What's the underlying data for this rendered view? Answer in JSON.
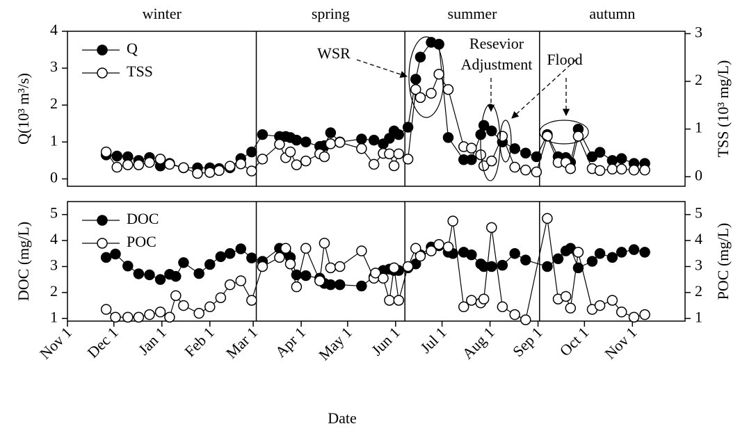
{
  "chart_data": [
    {
      "type": "line",
      "seasons": [
        "winter",
        "spring",
        "summer",
        "autumn"
      ],
      "dividers": [
        122,
        218,
        305
      ],
      "ylabel": "Q(10³ m³/s)",
      "y2label": "TSS (10³ mg/L)",
      "annotations": [
        "WSR",
        "Resevior",
        "Adjustment",
        "Flood"
      ],
      "xlim": [
        0,
        399
      ],
      "ylim": [
        -0.2,
        4
      ],
      "yticks": [
        0,
        1,
        2,
        3,
        4
      ],
      "y2lim": [
        -0.2,
        3.05
      ],
      "y2ticks": [
        0,
        1,
        2,
        3
      ],
      "legend": "upper left",
      "x": [
        25,
        32,
        39,
        46,
        53,
        60,
        66,
        75,
        84,
        92,
        98,
        105,
        112,
        119,
        126,
        137,
        141,
        144,
        148,
        154,
        163,
        166,
        170,
        176,
        190,
        198,
        204,
        208,
        211,
        214,
        220,
        225,
        228,
        235,
        240,
        246,
        256,
        261,
        267,
        269,
        274,
        281,
        289,
        296,
        303,
        310,
        317,
        322,
        325,
        330,
        339,
        344,
        352,
        358,
        366,
        373
      ],
      "series": [
        {
          "name": "Q",
          "color": "#000000",
          "marker": "filled",
          "values": [
            0.65,
            0.62,
            0.6,
            0.5,
            0.58,
            0.35,
            0.42,
            0.3,
            0.3,
            0.3,
            0.28,
            0.3,
            0.55,
            0.73,
            1.2,
            1.15,
            1.15,
            1.12,
            1.05,
            1.0,
            0.88,
            0.9,
            1.25,
            1.0,
            1.08,
            1.05,
            0.95,
            1.1,
            1.3,
            1.2,
            1.4,
            2.7,
            3.3,
            3.7,
            3.65,
            1.12,
            0.52,
            0.52,
            1.2,
            1.45,
            1.3,
            1.0,
            0.82,
            0.7,
            0.6,
            1.2,
            0.6,
            0.58,
            0.45,
            1.35,
            0.6,
            0.72,
            0.5,
            0.55,
            0.42,
            0.42
          ]
        },
        {
          "name": "TSS",
          "color": "#000000",
          "marker": "hollow",
          "axis": "y2",
          "values": [
            0.52,
            0.2,
            0.25,
            0.25,
            0.3,
            0.37,
            0.26,
            0.19,
            0.07,
            0.09,
            0.13,
            0.22,
            0.27,
            0.12,
            0.37,
            0.68,
            0.4,
            0.52,
            0.25,
            0.33,
            0.48,
            0.42,
            0.69,
            0.72,
            0.59,
            0.26,
            0.49,
            0.48,
            0.23,
            0.48,
            0.37,
            1.83,
            1.66,
            1.75,
            2.15,
            1.83,
            0.63,
            0.6,
            0.46,
            0.23,
            0.33,
            0.85,
            0.2,
            0.14,
            0.1,
            0.85,
            0.3,
            0.3,
            0.17,
            0.85,
            0.17,
            0.13,
            0.16,
            0.16,
            0.14,
            0.14
          ]
        }
      ]
    },
    {
      "type": "line",
      "xlabel": "Date",
      "ylabel": "DOC (mg/L)",
      "y2label": "POC (mg/L)",
      "xlim": [
        0,
        399
      ],
      "xticks": [
        {
          "value": 0,
          "label": "Nov 1"
        },
        {
          "value": 30,
          "label": "Dec 1"
        },
        {
          "value": 61,
          "label": "Jan 1"
        },
        {
          "value": 92,
          "label": "Feb 1"
        },
        {
          "value": 120,
          "label": "Mar 1"
        },
        {
          "value": 151,
          "label": "Apr 1"
        },
        {
          "value": 181,
          "label": "May 1"
        },
        {
          "value": 212,
          "label": "Jun 1"
        },
        {
          "value": 242,
          "label": "Jul 1"
        },
        {
          "value": 273,
          "label": "Aug 1"
        },
        {
          "value": 304,
          "label": "Sep 1"
        },
        {
          "value": 334,
          "label": "Oct 1"
        },
        {
          "value": 365,
          "label": "Nov 1"
        }
      ],
      "ylim": [
        0.9,
        5.5
      ],
      "yticks": [
        1,
        2,
        3,
        4,
        5
      ],
      "y2lim": [
        0.9,
        5.5
      ],
      "y2ticks": [
        1,
        2,
        3,
        4,
        5
      ],
      "legend": "upper left",
      "x": [
        25,
        31,
        39,
        46,
        53,
        60,
        66,
        70,
        75,
        85,
        92,
        99,
        105,
        112,
        119,
        126,
        137,
        141,
        144,
        148,
        154,
        163,
        166,
        170,
        176,
        190,
        198,
        199,
        204,
        208,
        211,
        214,
        220,
        225,
        228,
        235,
        240,
        246,
        249,
        256,
        261,
        267,
        269,
        274,
        281,
        289,
        296,
        310,
        317,
        322,
        325,
        330,
        339,
        344,
        352,
        358,
        366,
        373
      ],
      "series": [
        {
          "name": "DOC",
          "color": "#000000",
          "marker": "filled",
          "values": [
            3.35,
            3.48,
            3.02,
            2.72,
            2.68,
            2.5,
            2.7,
            2.62,
            3.15,
            2.73,
            3.08,
            3.38,
            3.5,
            3.68,
            3.33,
            3.2,
            3.7,
            3.55,
            3.35,
            2.68,
            2.65,
            2.55,
            2.35,
            2.3,
            2.3,
            2.25,
            2.6,
            2.7,
            2.85,
            2.9,
            2.85,
            2.85,
            2.95,
            3.1,
            3.45,
            3.75,
            3.8,
            3.55,
            3.5,
            3.55,
            3.45,
            3.1,
            3.0,
            3.0,
            3.05,
            3.5,
            3.25,
            3.0,
            3.3,
            3.6,
            3.7,
            2.95,
            3.2,
            3.5,
            3.35,
            3.55,
            3.65,
            3.55
          ]
        },
        {
          "name": "POC",
          "color": "#000000",
          "marker": "hollow",
          "axis": "y2",
          "values": [
            1.35,
            1.05,
            1.05,
            1.05,
            1.15,
            1.25,
            1.05,
            1.88,
            1.5,
            1.2,
            1.45,
            1.8,
            2.3,
            2.45,
            1.7,
            3.0,
            3.35,
            3.7,
            3.1,
            2.22,
            3.7,
            2.45,
            3.9,
            2.95,
            3.0,
            3.6,
            2.55,
            2.75,
            2.55,
            1.7,
            2.95,
            1.7,
            3.0,
            3.7,
            3.4,
            3.6,
            3.85,
            3.75,
            4.75,
            1.45,
            1.7,
            1.6,
            1.75,
            4.5,
            1.45,
            1.15,
            0.95,
            4.85,
            1.75,
            1.85,
            1.4,
            3.55,
            1.35,
            1.5,
            1.7,
            1.25,
            1.05,
            1.15
          ]
        }
      ]
    }
  ]
}
